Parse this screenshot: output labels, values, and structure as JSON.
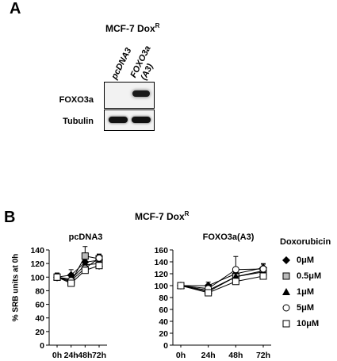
{
  "panel_a": {
    "letter": "A",
    "title_main": "MCF-7 Dox",
    "title_sup": "R",
    "lanes": [
      "pcDNA3",
      "FOXO3a",
      "(A3)"
    ],
    "rows": [
      "FOXO3a",
      "Tubulin"
    ]
  },
  "panel_b": {
    "letter": "B",
    "title_main": "MCF-7 Dox",
    "title_sup": "R",
    "ylabel": "% SRB units at 0h",
    "legend_title": "Doxorubicin",
    "legend": [
      "0μM",
      "0.5μM",
      "1μM",
      "5μM",
      "10μM"
    ]
  },
  "chart_data": [
    {
      "type": "line",
      "title": "pcDNA3",
      "ylabel": "% SRB units at 0h",
      "categories": [
        "0h",
        "24h",
        "48h",
        "72h"
      ],
      "ylim": [
        0,
        140
      ],
      "yticks": [
        0,
        20,
        40,
        60,
        80,
        100,
        120,
        140
      ],
      "series": [
        {
          "name": "0μM",
          "marker": "diamond-filled",
          "values": [
            100,
            103,
            122,
            125
          ],
          "errors": [
            6,
            8,
            10,
            8
          ]
        },
        {
          "name": "0.5μM",
          "marker": "square-grey",
          "values": [
            100,
            93,
            131,
            127
          ],
          "errors": [
            6,
            5,
            14,
            6
          ]
        },
        {
          "name": "1μM",
          "marker": "triangle-filled",
          "values": [
            100,
            97,
            118,
            120
          ],
          "errors": [
            5,
            6,
            8,
            8
          ]
        },
        {
          "name": "5μM",
          "marker": "circle-open",
          "values": [
            100,
            95,
            113,
            128
          ],
          "errors": [
            5,
            5,
            6,
            6
          ]
        },
        {
          "name": "10μM",
          "marker": "square-open",
          "values": [
            100,
            91,
            110,
            117
          ],
          "errors": [
            5,
            4,
            5,
            6
          ]
        }
      ]
    },
    {
      "type": "line",
      "title": "FOXO3a(A3)",
      "ylabel": "% SRB units at 0h",
      "categories": [
        "0h",
        "24h",
        "48h",
        "72h"
      ],
      "ylim": [
        0,
        160
      ],
      "yticks": [
        0,
        20,
        40,
        60,
        80,
        100,
        120,
        140,
        160
      ],
      "series": [
        {
          "name": "0μM",
          "marker": "diamond-filled",
          "values": [
            100,
            100,
            120,
            130
          ],
          "errors": [
            3,
            6,
            6,
            7
          ]
        },
        {
          "name": "0.5μM",
          "marker": "square-grey",
          "values": [
            100,
            90,
            115,
            125
          ],
          "errors": [
            3,
            4,
            6,
            6
          ]
        },
        {
          "name": "1μM",
          "marker": "triangle-filled",
          "values": [
            100,
            92,
            115,
            123
          ],
          "errors": [
            3,
            4,
            6,
            6
          ]
        },
        {
          "name": "5μM",
          "marker": "circle-open",
          "values": [
            100,
            95,
            127,
            128
          ],
          "errors": [
            3,
            5,
            22,
            8
          ]
        },
        {
          "name": "10μM",
          "marker": "square-open",
          "values": [
            100,
            88,
            107,
            116
          ],
          "errors": [
            3,
            4,
            5,
            6
          ]
        }
      ]
    }
  ]
}
